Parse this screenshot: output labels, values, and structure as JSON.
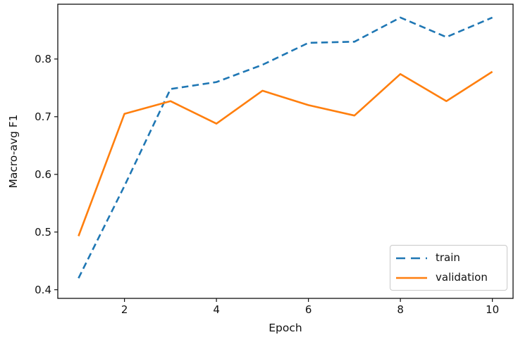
{
  "chart_data": {
    "type": "line",
    "title": "",
    "xlabel": "Epoch",
    "ylabel": "Macro-avg F1",
    "x": [
      1,
      2,
      3,
      4,
      5,
      6,
      7,
      8,
      9,
      10
    ],
    "series": [
      {
        "name": "train",
        "color": "#1f77b4",
        "style": "dashed",
        "values": [
          0.42,
          0.58,
          0.748,
          0.76,
          0.79,
          0.828,
          0.83,
          0.872,
          0.838,
          0.872
        ]
      },
      {
        "name": "validation",
        "color": "#ff7f0e",
        "style": "solid",
        "values": [
          0.493,
          0.705,
          0.727,
          0.688,
          0.745,
          0.72,
          0.702,
          0.774,
          0.727,
          0.778
        ]
      }
    ],
    "xticks": [
      2,
      4,
      6,
      8,
      10
    ],
    "yticks": [
      0.4,
      0.5,
      0.6,
      0.7,
      0.8
    ],
    "xlim": [
      0.55,
      10.45
    ],
    "ylim": [
      0.385,
      0.895
    ],
    "grid": false,
    "background": "#ffffff",
    "axis_color": "#111111",
    "legend": {
      "position": "lower right",
      "entries": [
        "train",
        "validation"
      ]
    }
  }
}
